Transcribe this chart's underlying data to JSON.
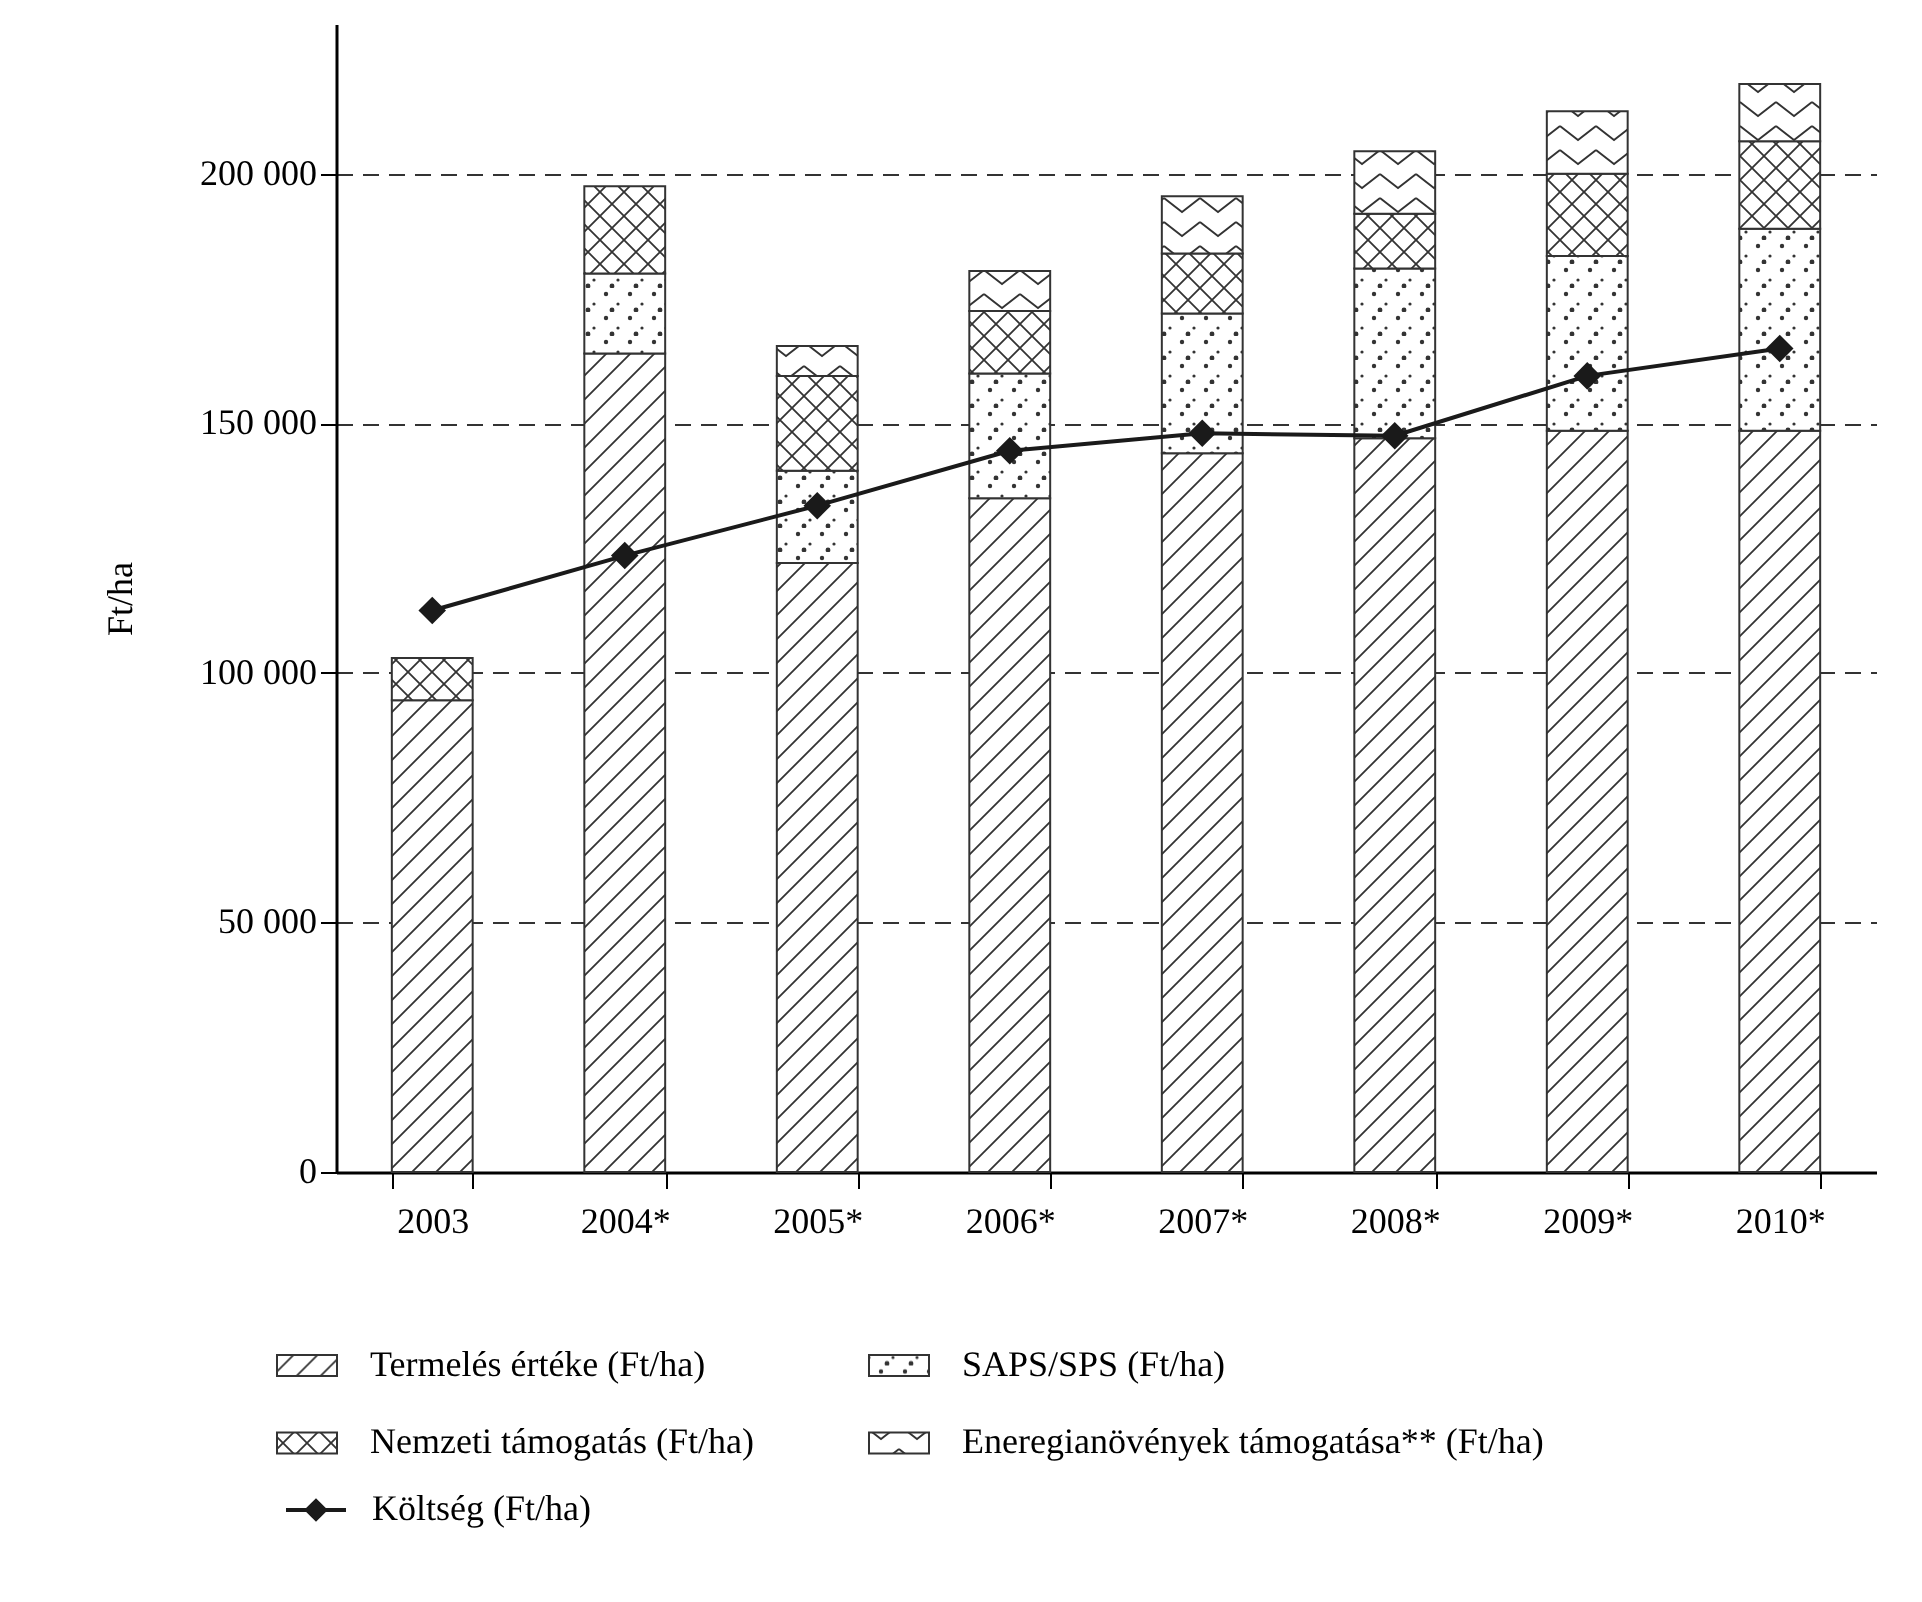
{
  "chart_data": {
    "type": "bar",
    "stacked": true,
    "ylabel": "Ft/ha",
    "categories": [
      "2003",
      "2004*",
      "2005*",
      "2006*",
      "2007*",
      "2008*",
      "2009*",
      "2010*"
    ],
    "series": [
      {
        "name": "Termelés értéke (Ft/ha)",
        "color": "#333333",
        "values": [
          94500,
          164000,
          122000,
          135000,
          144000,
          147000,
          148500,
          148500
        ]
      },
      {
        "name": "SAPS/SPS (Ft/ha)",
        "color": "#333333",
        "values": [
          null,
          16000,
          18500,
          25000,
          28000,
          34000,
          35000,
          40500
        ]
      },
      {
        "name": "Nemzeti támogatás (Ft/ha)",
        "color": "#333333",
        "values": [
          8500,
          17500,
          19000,
          12500,
          12000,
          11000,
          16500,
          17500
        ]
      },
      {
        "name": "Eneregianövények támogatása** (Ft/ha)",
        "color": "#333333",
        "values": [
          null,
          null,
          6000,
          8000,
          11500,
          12500,
          12500,
          11500
        ]
      },
      {
        "name": "Költség (Ft/ha)",
        "type": "line",
        "color": "#1a1a1a",
        "marker": "diamond",
        "values": [
          112500,
          123500,
          133500,
          144500,
          148000,
          147500,
          159500,
          165000
        ]
      }
    ],
    "ylim": [
      0,
      230000
    ],
    "yticks": [
      {
        "value": 0,
        "label": "0"
      },
      {
        "value": 50000,
        "label": "50 000"
      },
      {
        "value": 100000,
        "label": "100 000"
      },
      {
        "value": 150000,
        "label": "150 000"
      },
      {
        "value": 200000,
        "label": "200 000"
      }
    ],
    "grid": "y",
    "legend": "bottom"
  }
}
